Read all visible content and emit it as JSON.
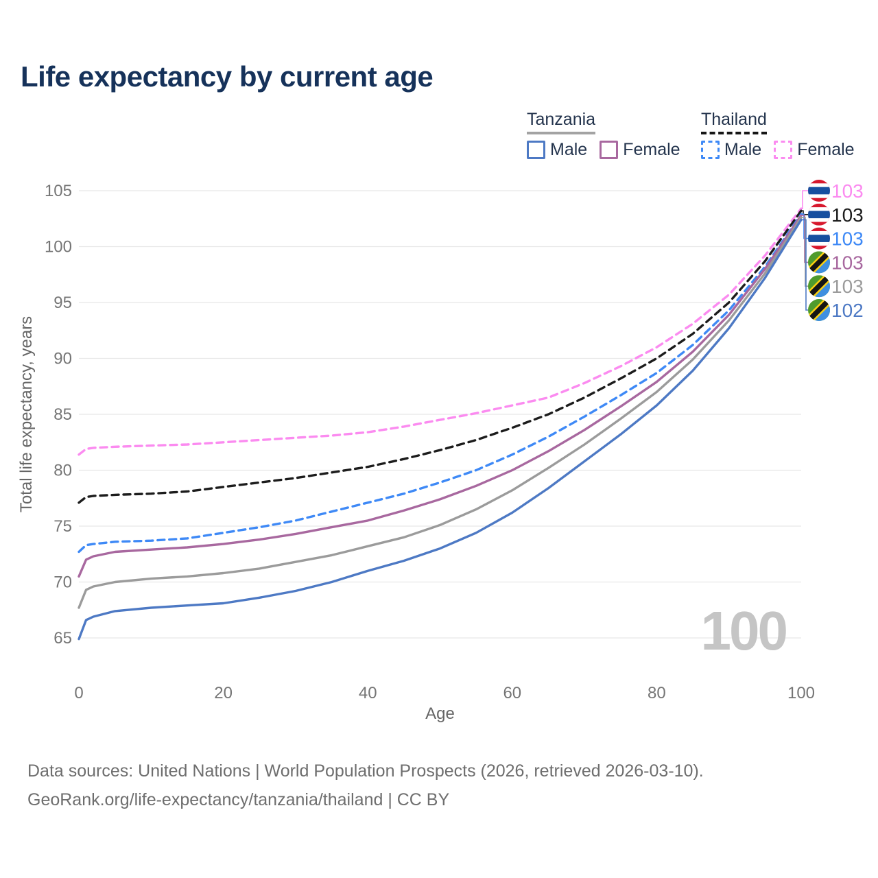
{
  "title": "Life expectancy by current age",
  "legend": {
    "groups": [
      {
        "name": "Tanzania",
        "line_style": "solid",
        "underline_color": "#a3a3a3",
        "items": [
          {
            "label": "Male",
            "color": "#4d79c4",
            "dash": false
          },
          {
            "label": "Female",
            "color": "#a8689f",
            "dash": false
          }
        ]
      },
      {
        "name": "Thailand",
        "line_style": "dashed",
        "underline_color": "#161616",
        "items": [
          {
            "label": "Male",
            "color": "#3e89f6",
            "dash": true
          },
          {
            "label": "Female",
            "color": "#fb8bf0",
            "dash": true
          }
        ]
      }
    ]
  },
  "chart_data": {
    "type": "line",
    "title": "Life expectancy by current age",
    "xlabel": "Age",
    "ylabel": "Total life expectancy, years",
    "xlim": [
      0,
      100
    ],
    "ylim": [
      62.5,
      105.5
    ],
    "xticks": [
      0,
      20,
      40,
      60,
      80,
      100
    ],
    "yticks": [
      65,
      70,
      75,
      80,
      85,
      90,
      95,
      100,
      105
    ],
    "grid": "horizontal",
    "legend_position": "top-right",
    "watermark_age": "100",
    "x": [
      0,
      1,
      2,
      5,
      10,
      15,
      20,
      25,
      30,
      35,
      40,
      45,
      50,
      55,
      60,
      65,
      70,
      75,
      80,
      85,
      90,
      95,
      100
    ],
    "series": [
      {
        "name": "Thailand Female",
        "country": "Thailand",
        "sex": "female",
        "color": "#fb8bf0",
        "dash": true,
        "end_label": "103",
        "values": [
          81.4,
          81.9,
          82.0,
          82.1,
          82.2,
          82.3,
          82.5,
          82.7,
          82.9,
          83.1,
          83.4,
          83.9,
          84.5,
          85.1,
          85.8,
          86.5,
          87.8,
          89.3,
          91.0,
          93.1,
          95.7,
          99.2,
          103.4
        ]
      },
      {
        "name": "Thailand Both sexes",
        "country": "Thailand",
        "sex": "both",
        "color": "#1c1c1c",
        "dash": true,
        "end_label": "103",
        "values": [
          77.1,
          77.6,
          77.7,
          77.8,
          77.9,
          78.1,
          78.5,
          78.9,
          79.3,
          79.8,
          80.3,
          81.0,
          81.8,
          82.7,
          83.8,
          85.0,
          86.5,
          88.2,
          90.0,
          92.2,
          95.0,
          98.7,
          103.2
        ]
      },
      {
        "name": "Thailand Male",
        "country": "Thailand",
        "sex": "male",
        "color": "#3e89f6",
        "dash": true,
        "end_label": "103",
        "values": [
          72.7,
          73.3,
          73.4,
          73.6,
          73.7,
          73.9,
          74.4,
          74.9,
          75.5,
          76.3,
          77.1,
          77.9,
          78.9,
          80.0,
          81.4,
          83.0,
          84.8,
          86.7,
          88.7,
          91.2,
          94.3,
          98.2,
          102.9
        ]
      },
      {
        "name": "Tanzania Female",
        "country": "Tanzania",
        "sex": "female",
        "color": "#a8689f",
        "dash": false,
        "end_label": "103",
        "values": [
          70.5,
          72.0,
          72.3,
          72.7,
          72.9,
          73.1,
          73.4,
          73.8,
          74.3,
          74.9,
          75.5,
          76.4,
          77.4,
          78.6,
          80.0,
          81.7,
          83.6,
          85.7,
          87.9,
          90.6,
          93.9,
          98.0,
          102.8
        ]
      },
      {
        "name": "Tanzania Both sexes",
        "country": "Tanzania",
        "sex": "both",
        "color": "#9b9b9b",
        "dash": false,
        "end_label": "103",
        "values": [
          67.7,
          69.3,
          69.6,
          70.0,
          70.3,
          70.5,
          70.8,
          71.2,
          71.8,
          72.4,
          73.2,
          74.0,
          75.1,
          76.5,
          78.2,
          80.2,
          82.3,
          84.6,
          87.0,
          89.9,
          93.4,
          97.6,
          102.6
        ]
      },
      {
        "name": "Tanzania Male",
        "country": "Tanzania",
        "sex": "male",
        "color": "#4d79c4",
        "dash": false,
        "end_label": "102",
        "values": [
          64.9,
          66.6,
          66.9,
          67.4,
          67.7,
          67.9,
          68.1,
          68.6,
          69.2,
          70.0,
          71.0,
          71.9,
          73.0,
          74.4,
          76.2,
          78.4,
          80.8,
          83.2,
          85.8,
          88.9,
          92.7,
          97.2,
          102.4
        ]
      }
    ],
    "flag_colors": {
      "thailand": {
        "red": "#d7182d",
        "white": "#ffffff",
        "blue": "#174f9f"
      },
      "tanzania": {
        "green": "#4f9b2d",
        "blue": "#3f8fe0",
        "yellow": "#fcd10f",
        "black": "#151515"
      }
    }
  },
  "footer": {
    "line1": "Data sources: United Nations | World Population Prospects (2026, retrieved 2026-03-10).",
    "line2": "GeoRank.org/life-expectancy/tanzania/thailand | CC BY"
  }
}
